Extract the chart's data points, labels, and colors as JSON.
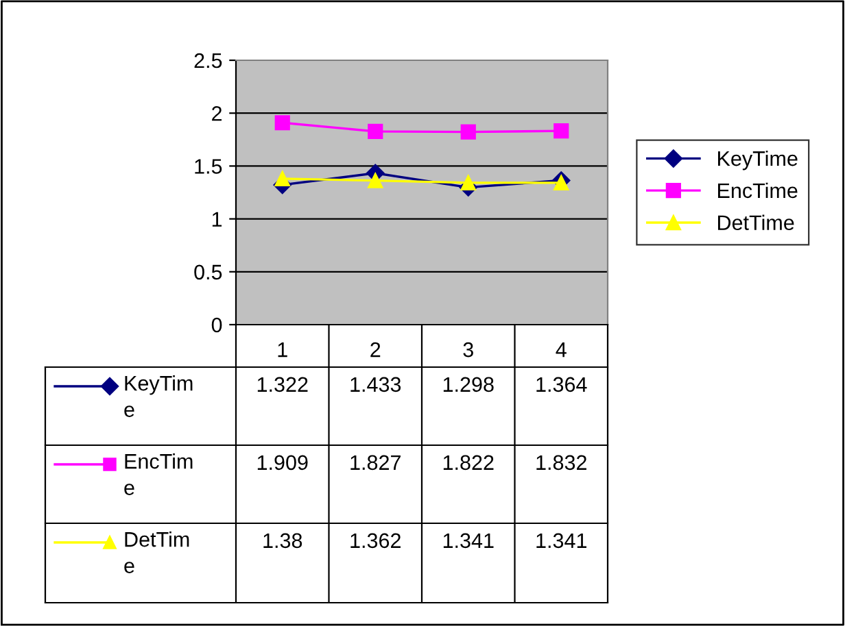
{
  "chart_data": {
    "type": "line",
    "categories": [
      "1",
      "2",
      "3",
      "4"
    ],
    "series": [
      {
        "name": "KeyTime",
        "color": "#000080",
        "marker": "diamond",
        "values": [
          1.322,
          1.433,
          1.298,
          1.364
        ]
      },
      {
        "name": "EncTime",
        "color": "#ff00ff",
        "marker": "square",
        "values": [
          1.909,
          1.827,
          1.822,
          1.832
        ]
      },
      {
        "name": "DetTime",
        "color": "#ffff00",
        "marker": "triangle",
        "values": [
          1.38,
          1.362,
          1.341,
          1.341
        ]
      }
    ],
    "ylim": [
      0,
      2.5
    ],
    "yticks": [
      0,
      0.5,
      1,
      1.5,
      2,
      2.5
    ],
    "grid": "y",
    "legend": "right",
    "data_labels": true
  }
}
